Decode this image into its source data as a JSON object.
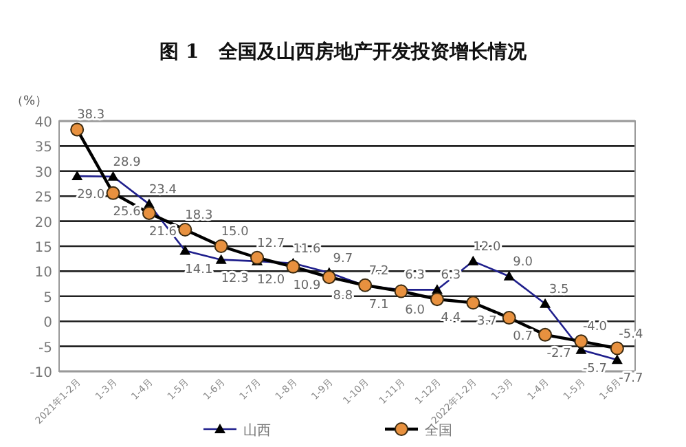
{
  "chart_data": {
    "type": "line",
    "title": "图 1　全国及山西房地产开发投资增长情况",
    "ylabel": "（%）",
    "categories": [
      "2021年1-2月",
      "1-3月",
      "1-4月",
      "1-5月",
      "1-6月",
      "1-7月",
      "1-8月",
      "1-9月",
      "1-10月",
      "1-11月",
      "1-12月",
      "2022年1-2月",
      "1-3月",
      "1-4月",
      "1-5月",
      "1-6月"
    ],
    "series": [
      {
        "name": "山西",
        "color": "#1f1f8c",
        "marker": "triangle",
        "values": [
          29.0,
          28.9,
          23.4,
          14.1,
          12.3,
          12.0,
          11.6,
          9.7,
          7.1,
          6.3,
          6.3,
          12.0,
          9.0,
          3.5,
          -5.7,
          -7.7
        ],
        "value_labels": [
          "29.0",
          "28.9",
          "23.4",
          "14.1",
          "12.3",
          "12.0",
          "11.6",
          "9.7",
          "7.1",
          "6.3",
          "6.3",
          "12.0",
          "9.0",
          "3.5",
          "-5.7",
          "-7.7"
        ]
      },
      {
        "name": "全国",
        "color": "#000000",
        "marker": "circle",
        "values": [
          38.3,
          25.6,
          21.6,
          18.3,
          15.0,
          12.7,
          10.9,
          8.8,
          7.2,
          6.0,
          4.4,
          3.7,
          0.7,
          -2.7,
          -4.0,
          -5.4
        ],
        "value_labels": [
          "38.3",
          "25.6",
          "21.6",
          "18.3",
          "15.0",
          "12.7",
          "10.9",
          "8.8",
          "7.2",
          "6.0",
          "4.4",
          "3.7",
          "0.7",
          "-2.7",
          "-4.0",
          "-5.4"
        ]
      }
    ],
    "ylim": [
      -10,
      40
    ],
    "yticks": [
      -10,
      -5,
      0,
      5,
      10,
      15,
      20,
      25,
      30,
      35,
      40
    ],
    "grid": "y",
    "legend": "bottom"
  }
}
